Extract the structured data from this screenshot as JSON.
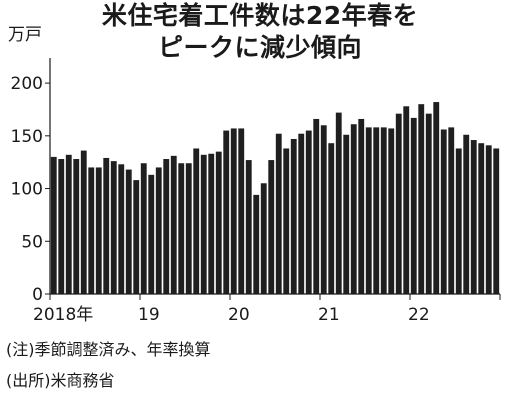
{
  "chart_data": {
    "type": "bar",
    "title_lines": [
      "米住宅着工件数は22年春を",
      "ピークに減少傾向"
    ],
    "unit_label": "万戸",
    "ylim": [
      0,
      220
    ],
    "yticks": [
      0,
      50,
      100,
      150,
      200
    ],
    "grid": false,
    "bar_color": "#1f1f1f",
    "year_labels": [
      "2018年",
      "19",
      "20",
      "21",
      "22"
    ],
    "values": [
      130,
      128,
      132,
      128,
      136,
      120,
      120,
      129,
      126,
      123,
      118,
      108,
      124,
      113,
      120,
      128,
      131,
      124,
      124,
      138,
      132,
      133,
      135,
      155,
      157,
      157,
      127,
      94,
      105,
      127,
      152,
      138,
      147,
      152,
      155,
      166,
      160,
      143,
      172,
      151,
      161,
      166,
      158,
      158,
      158,
      157,
      171,
      178,
      167,
      180,
      171,
      182,
      156,
      158,
      138,
      151,
      146,
      143,
      141,
      138
    ],
    "notes": [
      "(注)季節調整済み、年率換算",
      "(出所)米商務省"
    ]
  }
}
